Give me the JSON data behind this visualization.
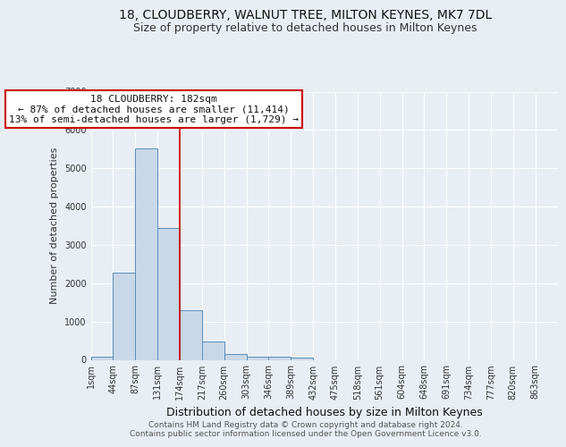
{
  "title": "18, CLOUDBERRY, WALNUT TREE, MILTON KEYNES, MK7 7DL",
  "subtitle": "Size of property relative to detached houses in Milton Keynes",
  "xlabel": "Distribution of detached houses by size in Milton Keynes",
  "ylabel": "Number of detached properties",
  "bin_labels": [
    "1sqm",
    "44sqm",
    "87sqm",
    "131sqm",
    "174sqm",
    "217sqm",
    "260sqm",
    "303sqm",
    "346sqm",
    "389sqm",
    "432sqm",
    "475sqm",
    "518sqm",
    "561sqm",
    "604sqm",
    "648sqm",
    "691sqm",
    "734sqm",
    "777sqm",
    "820sqm",
    "863sqm"
  ],
  "bar_values": [
    75,
    2270,
    5520,
    3440,
    1300,
    470,
    155,
    85,
    75,
    50,
    0,
    0,
    0,
    0,
    0,
    0,
    0,
    0,
    0,
    0,
    0
  ],
  "bar_color": "#c8d8e8",
  "bar_edge_color": "#5b8db8",
  "background_color": "#e8eef4",
  "grid_color": "#ffffff",
  "red_line_x": 4.0,
  "annotation_text": "18 CLOUDBERRY: 182sqm\n← 87% of detached houses are smaller (11,414)\n13% of semi-detached houses are larger (1,729) →",
  "annotation_box_color": "#ffffff",
  "annotation_box_edge": "#cc0000",
  "red_line_color": "#cc0000",
  "ylim": [
    0,
    7000
  ],
  "title_fontsize": 10,
  "subtitle_fontsize": 9,
  "annot_fontsize": 8,
  "tick_fontsize": 7,
  "ylabel_fontsize": 8,
  "xlabel_fontsize": 9,
  "footer_text": "Contains HM Land Registry data © Crown copyright and database right 2024.\nContains public sector information licensed under the Open Government Licence v3.0."
}
